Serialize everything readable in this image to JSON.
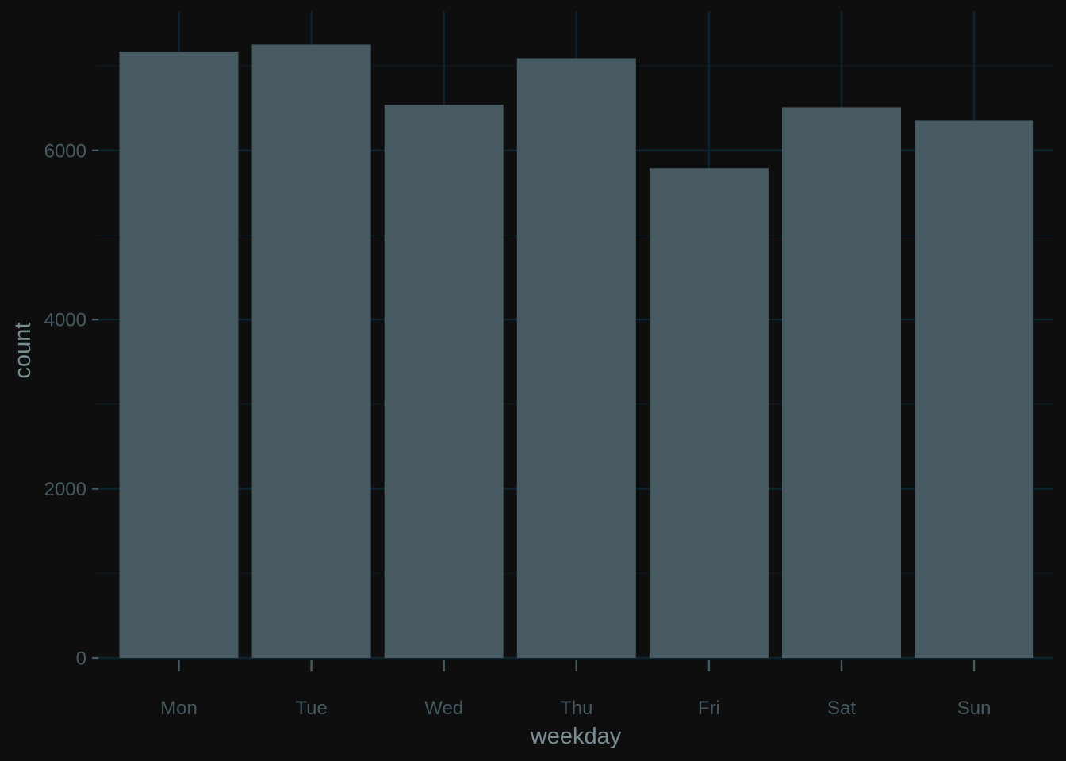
{
  "colors": {
    "background": "#0e0e0e",
    "bar_fill": "#475a62",
    "major_grid": "#0c2430",
    "minor_grid": "#0b1d26",
    "tick_text": "#475a62",
    "axis_title_text": "#7b8d95",
    "tick_mark": "#475a62"
  },
  "chart_data": {
    "type": "bar",
    "categories": [
      "Mon",
      "Tue",
      "Wed",
      "Thu",
      "Fri",
      "Sat",
      "Sun"
    ],
    "values": [
      7170,
      7250,
      6540,
      7090,
      5790,
      6510,
      6350
    ],
    "title": "",
    "xlabel": "weekday",
    "ylabel": "count",
    "ylim": [
      0,
      7500
    ],
    "yticks": [
      0,
      2000,
      4000,
      6000
    ],
    "ytick_labels": [
      "0",
      "2000",
      "4000",
      "6000"
    ],
    "grid": true,
    "legend": "none"
  }
}
